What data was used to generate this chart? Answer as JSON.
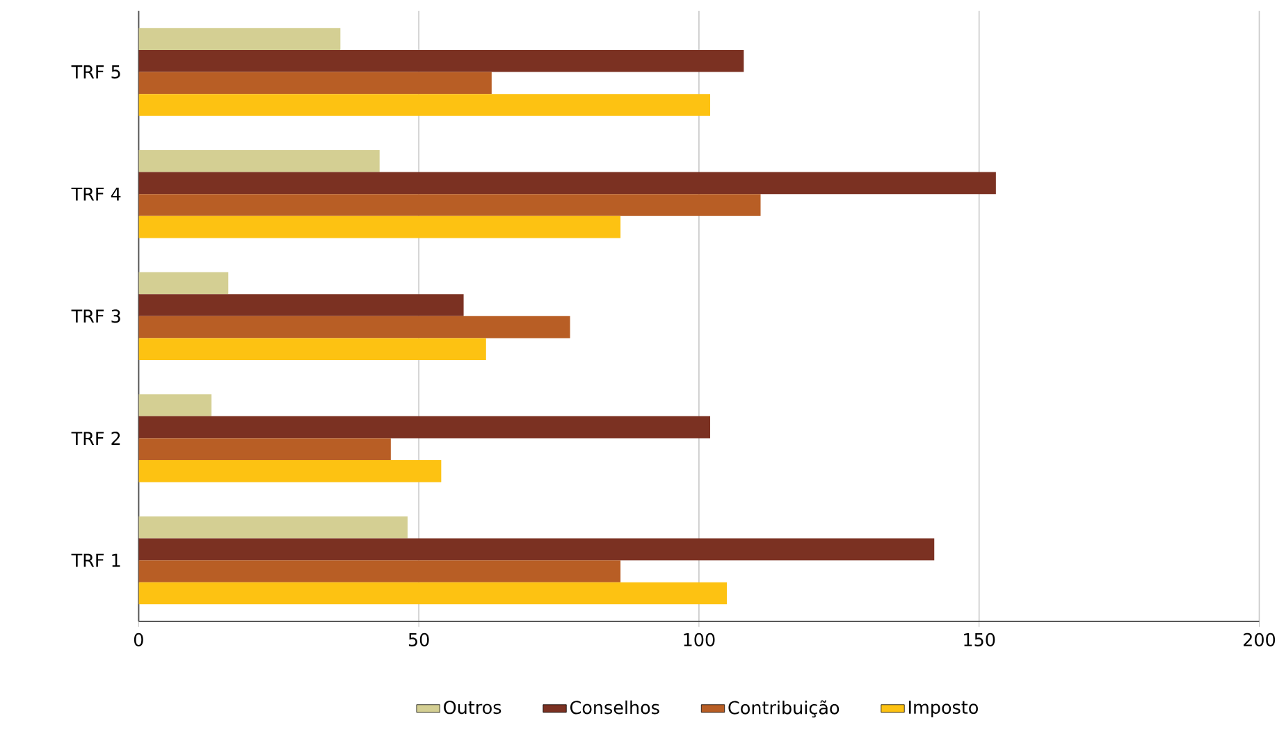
{
  "chart_data": {
    "type": "bar",
    "orientation": "horizontal",
    "categories": [
      "TRF 5",
      "TRF 4",
      "TRF 3",
      "TRF 2",
      "TRF 1"
    ],
    "series": [
      {
        "name": "Outros",
        "color": "#d4cf93",
        "values": [
          36,
          43,
          16,
          13,
          48
        ]
      },
      {
        "name": "Conselhos",
        "color": "#7b3122",
        "values": [
          108,
          153,
          58,
          102,
          142
        ]
      },
      {
        "name": "Contribuição",
        "color": "#b85e25",
        "values": [
          63,
          111,
          77,
          45,
          86
        ]
      },
      {
        "name": "Imposto",
        "color": "#fdc212",
        "values": [
          102,
          86,
          62,
          54,
          105
        ]
      }
    ],
    "xlim": [
      0,
      200
    ],
    "xticks": [
      0,
      50,
      100,
      150,
      200
    ],
    "grid": "x",
    "legend": "bottom"
  }
}
